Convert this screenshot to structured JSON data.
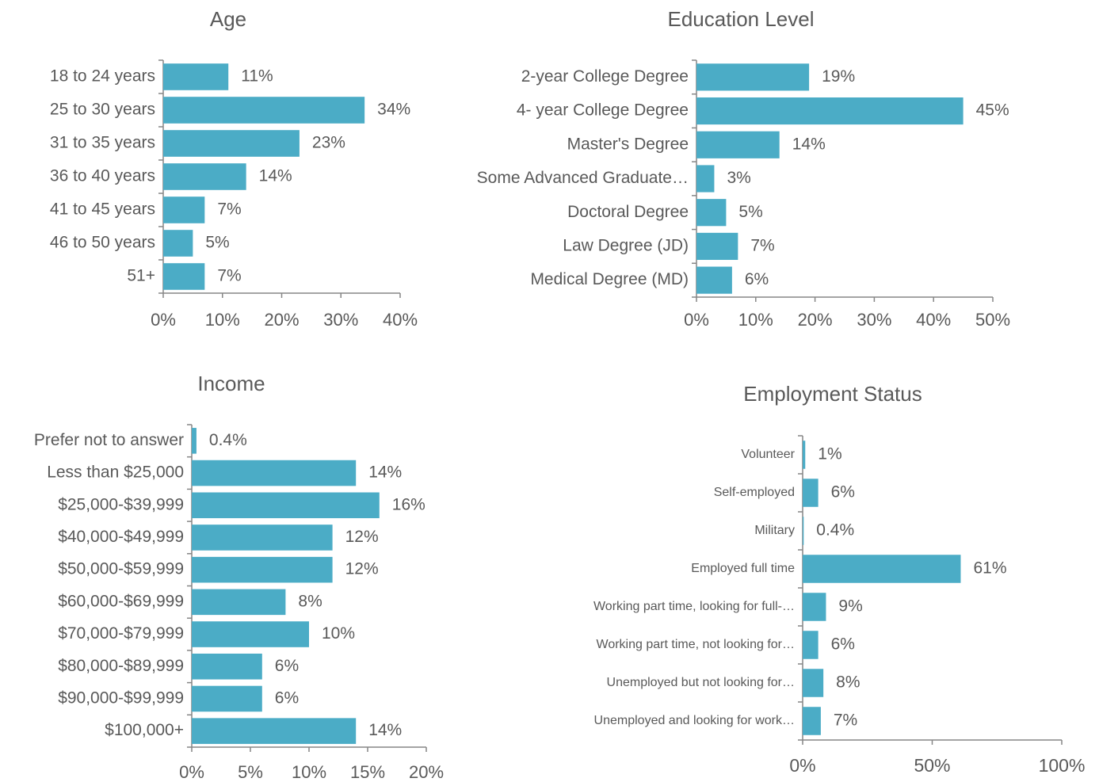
{
  "chart_data": [
    {
      "type": "bar",
      "orientation": "horizontal",
      "title": "Age",
      "color": "#4bacc6",
      "categories": [
        "18 to 24 years",
        "25 to 30 years",
        "31 to 35 years",
        "36 to 40 years",
        "41 to 45 years",
        "46 to 50 years",
        "51+"
      ],
      "values": [
        11,
        34,
        23,
        14,
        7,
        5,
        7
      ],
      "value_labels": [
        "11%",
        "34%",
        "23%",
        "14%",
        "7%",
        "5%",
        "7%"
      ],
      "xlim": [
        0,
        40
      ],
      "xticks": [
        {
          "value": 0,
          "label": "0%"
        },
        {
          "value": 10,
          "label": "10%"
        },
        {
          "value": 20,
          "label": "20%"
        },
        {
          "value": 30,
          "label": "30%"
        },
        {
          "value": 40,
          "label": "40%"
        }
      ]
    },
    {
      "type": "bar",
      "orientation": "horizontal",
      "title": "Education Level",
      "color": "#4bacc6",
      "categories": [
        "2-year College Degree",
        "4- year College Degree",
        "Master's Degree",
        "Some Advanced Graduate…",
        "Doctoral Degree",
        "Law Degree (JD)",
        "Medical Degree (MD)"
      ],
      "values": [
        19,
        45,
        14,
        3,
        5,
        7,
        6
      ],
      "value_labels": [
        "19%",
        "45%",
        "14%",
        "3%",
        "5%",
        "7%",
        "6%"
      ],
      "xlim": [
        0,
        50
      ],
      "xticks": [
        {
          "value": 0,
          "label": "0%"
        },
        {
          "value": 10,
          "label": "10%"
        },
        {
          "value": 20,
          "label": "20%"
        },
        {
          "value": 30,
          "label": "30%"
        },
        {
          "value": 40,
          "label": "40%"
        },
        {
          "value": 50,
          "label": "50%"
        }
      ]
    },
    {
      "type": "bar",
      "orientation": "horizontal",
      "title": "Income",
      "color": "#4bacc6",
      "categories": [
        "Prefer not to answer",
        "Less than $25,000",
        "$25,000-$39,999",
        "$40,000-$49,999",
        "$50,000-$59,999",
        "$60,000-$69,999",
        "$70,000-$79,999",
        "$80,000-$89,999",
        "$90,000-$99,999",
        "$100,000+"
      ],
      "values": [
        0.4,
        14,
        16,
        12,
        12,
        8,
        10,
        6,
        6,
        14
      ],
      "value_labels": [
        "0.4%",
        "14%",
        "16%",
        "12%",
        "12%",
        "8%",
        "10%",
        "6%",
        "6%",
        "14%"
      ],
      "xlim": [
        0,
        20
      ],
      "xticks": [
        {
          "value": 0,
          "label": "0%"
        },
        {
          "value": 5,
          "label": "5%"
        },
        {
          "value": 10,
          "label": "10%"
        },
        {
          "value": 15,
          "label": "15%"
        },
        {
          "value": 20,
          "label": "20%"
        }
      ]
    },
    {
      "type": "bar",
      "orientation": "horizontal",
      "title": "Employment Status",
      "color": "#4bacc6",
      "categories": [
        "Volunteer",
        "Self-employed",
        "Military",
        "Employed full time",
        "Working part time, looking for full-…",
        "Working part time, not looking for…",
        "Unemployed but not looking for…",
        "Unemployed and looking for work…"
      ],
      "values": [
        1,
        6,
        0.4,
        61,
        9,
        6,
        8,
        7
      ],
      "value_labels": [
        "1%",
        "6%",
        "0.4%",
        "61%",
        "9%",
        "6%",
        "8%",
        "7%"
      ],
      "xlim": [
        0,
        100
      ],
      "xticks": [
        {
          "value": 0,
          "label": "0%"
        },
        {
          "value": 50,
          "label": "50%"
        },
        {
          "value": 100,
          "label": "100%"
        }
      ]
    }
  ]
}
